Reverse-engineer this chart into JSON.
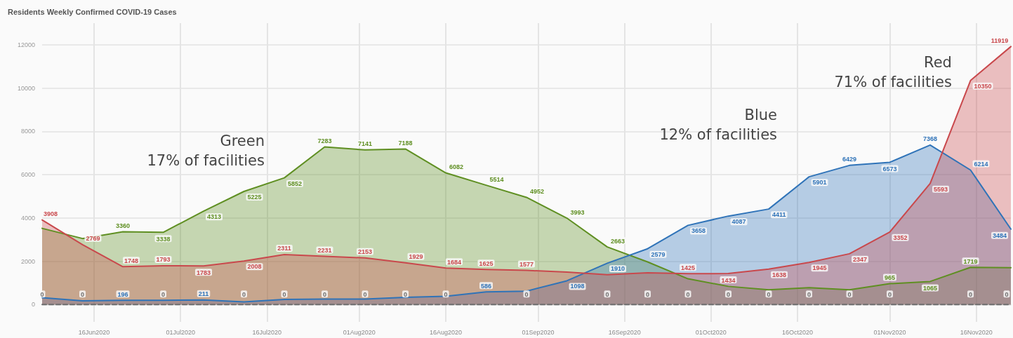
{
  "chart_data": {
    "type": "area",
    "title": "Residents Weekly Confirmed COVID-19 Cases",
    "x": [
      "2020-06-07",
      "2020-06-14",
      "2020-06-21",
      "2020-06-28",
      "2020-07-05",
      "2020-07-12",
      "2020-07-19",
      "2020-07-26",
      "2020-08-02",
      "2020-08-09",
      "2020-08-16",
      "2020-08-23",
      "2020-08-30",
      "2020-09-06",
      "2020-09-13",
      "2020-09-20",
      "2020-09-27",
      "2020-10-04",
      "2020-10-11",
      "2020-10-18",
      "2020-10-25",
      "2020-11-01",
      "2020-11-08",
      "2020-11-15",
      "2020-11-22"
    ],
    "series": [
      {
        "color": "#5f8f22",
        "values": [
          3520,
          3050,
          3360,
          3338,
          4313,
          5225,
          5852,
          7283,
          7141,
          7188,
          6082,
          5514,
          4952,
          3993,
          2663,
          1970,
          1190,
          840,
          680,
          780,
          680,
          965,
          1065,
          1719,
          1700
        ],
        "value_labels": [
          null,
          null,
          "3360",
          "3338",
          "4313",
          "5225",
          "5852",
          "7283",
          "7141",
          "7188",
          "6082",
          "5514",
          "4952",
          "3993",
          "2663",
          null,
          null,
          null,
          null,
          null,
          null,
          "965",
          "1065",
          "1719",
          null
        ]
      },
      {
        "color": "#2f73b8",
        "values": [
          320,
          170,
          196,
          200,
          211,
          120,
          240,
          250,
          250,
          330,
          380,
          586,
          620,
          1098,
          1910,
          2579,
          3658,
          4087,
          4411,
          5901,
          6429,
          6573,
          7368,
          6214,
          3484
        ],
        "value_labels": [
          null,
          null,
          "196",
          null,
          "211",
          null,
          null,
          null,
          null,
          null,
          null,
          "586",
          null,
          "1098",
          "1910",
          "2579",
          "3658",
          "4087",
          "4411",
          "5901",
          "6429",
          "6573",
          "7368",
          "6214",
          "3484"
        ]
      },
      {
        "color": "#c9484c",
        "values": [
          3908,
          2769,
          1748,
          1793,
          1783,
          2008,
          2311,
          2231,
          2153,
          1929,
          1684,
          1625,
          1577,
          1500,
          1380,
          1470,
          1425,
          1434,
          1638,
          1945,
          2347,
          3352,
          5593,
          10350,
          11919
        ],
        "value_labels": [
          "3908",
          "2769",
          "1748",
          "1793",
          "1783",
          "2008",
          "2311",
          "2231",
          "2153",
          "1929",
          "1684",
          "1625",
          "1577",
          null,
          null,
          null,
          "1425",
          "1434",
          "1638",
          "1945",
          "2347",
          "3352",
          "5593",
          "10350",
          "11919"
        ]
      },
      {
        "type": "line",
        "line_style": "dashed",
        "color": "#6e6e6e",
        "values": [
          0,
          0,
          0,
          0,
          0,
          0,
          0,
          0,
          0,
          0,
          0,
          0,
          0,
          0,
          0,
          0,
          0,
          0,
          0,
          0,
          0,
          0,
          0,
          0,
          0
        ],
        "value_labels": [
          "0",
          "0",
          null,
          "0",
          null,
          "0",
          "0",
          "0",
          "0",
          "0",
          "0",
          null,
          "0",
          null,
          "0",
          "0",
          "0",
          "0",
          "0",
          "0",
          "0",
          "0",
          null,
          "0",
          "0"
        ]
      }
    ],
    "xlim": [
      "2020-06-07",
      "2020-11-22"
    ],
    "xticks": [
      {
        "value": "2020-06-16",
        "label": "16Jun2020"
      },
      {
        "value": "2020-07-01",
        "label": "01Jul2020"
      },
      {
        "value": "2020-07-16",
        "label": "16Jul2020"
      },
      {
        "value": "2020-08-01",
        "label": "01Aug2020"
      },
      {
        "value": "2020-08-16",
        "label": "16Aug2020"
      },
      {
        "value": "2020-09-01",
        "label": "01Sep2020"
      },
      {
        "value": "2020-09-16",
        "label": "16Sep2020"
      },
      {
        "value": "2020-10-01",
        "label": "01Oct2020"
      },
      {
        "value": "2020-10-16",
        "label": "16Oct2020"
      },
      {
        "value": "2020-11-01",
        "label": "01Nov2020"
      },
      {
        "value": "2020-11-16",
        "label": "16Nov2020"
      }
    ],
    "ylim": [
      -800,
      13000
    ],
    "yticks": [
      0,
      2000,
      4000,
      6000,
      8000,
      10000,
      12000
    ],
    "grid": true,
    "marker": "none",
    "annotations": [
      "Green\n17% of facilities",
      "Blue\n12% of facilities",
      "Red\n71% of facilities"
    ]
  }
}
